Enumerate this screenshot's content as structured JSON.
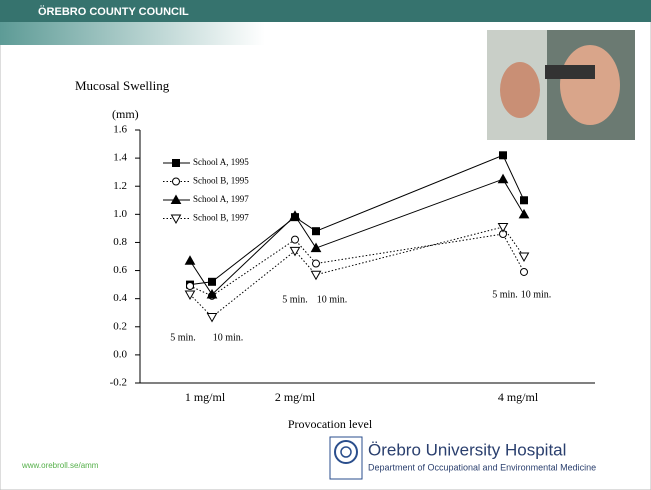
{
  "header": {
    "title": "ÖREBRO COUNTY COUNCIL"
  },
  "footer": {
    "url": "www.orebroll.se/amm",
    "hospital": "Örebro University Hospital",
    "department": "Department of Occupational and Environmental Medicine"
  },
  "chart_data": {
    "type": "line",
    "title": "Mucosal Swelling",
    "y_label": "(mm)",
    "x_label": "Provocation level",
    "categories": [
      "5 min.",
      "10 min.",
      "5 min.",
      "10 min.",
      "5 min.",
      "10 min."
    ],
    "group_labels": [
      "1 mg/ml",
      "2 mg/ml",
      "4 mg/ml"
    ],
    "ylim": [
      -0.2,
      1.6
    ],
    "yticks": [
      -0.2,
      {
        "value": 0.0,
        "label": "0.0"
      },
      0.2,
      0.4,
      0.6,
      0.8,
      {
        "value": 1.0,
        "label": "1.0"
      },
      1.2,
      1.4,
      1.6
    ],
    "legend": "top-left",
    "series": [
      {
        "name": "School A, 1995",
        "color": "#000000",
        "marker": "square",
        "filled": true,
        "dash": "solid",
        "values": [
          0.5,
          0.52,
          0.98,
          0.88,
          1.42,
          1.1
        ]
      },
      {
        "name": "School B, 1995",
        "color": "#000000",
        "marker": "circle",
        "filled": false,
        "dash": "dotted",
        "values": [
          0.49,
          0.42,
          0.82,
          0.65,
          0.86,
          0.59
        ]
      },
      {
        "name": "School A, 1997",
        "color": "#000000",
        "marker": "triangle-up",
        "filled": true,
        "dash": "solid",
        "values": [
          0.67,
          0.43,
          0.99,
          0.76,
          1.25,
          1.0
        ]
      },
      {
        "name": "School B, 1997",
        "color": "#000000",
        "marker": "triangle-down",
        "filled": false,
        "dash": "dotted",
        "values": [
          0.43,
          0.27,
          0.74,
          0.57,
          0.91,
          0.7
        ]
      }
    ]
  }
}
